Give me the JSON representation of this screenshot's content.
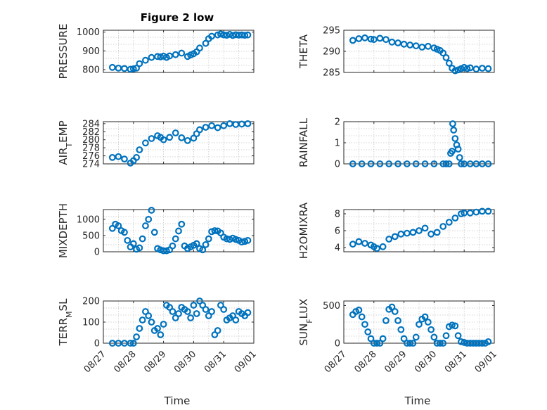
{
  "figure": {
    "title": "Figure 2 low"
  },
  "colors": {
    "marker": "#0072BD",
    "axis": "#262626",
    "grid": "#c8c8c8"
  },
  "chart_data": [
    {
      "type": "scatter",
      "ylabel": "PRESSURE",
      "title": "Figure 2 low",
      "ylim": [
        785,
        1010
      ],
      "yticks": [
        800,
        900,
        1000
      ],
      "grid": true,
      "series": [
        {
          "x": [
            0.3,
            0.5,
            0.7,
            0.9,
            1.0,
            1.1,
            1.2,
            1.4,
            1.6,
            1.8,
            1.9,
            2.0,
            2.1,
            2.2,
            2.4,
            2.6,
            2.8,
            2.9,
            3.0,
            3.1,
            3.2,
            3.4,
            3.5,
            3.6,
            3.8,
            3.9,
            4.0,
            4.1,
            4.2,
            4.3,
            4.4,
            4.5,
            4.6,
            4.7,
            4.8
          ],
          "y": [
            812,
            808,
            806,
            802,
            804,
            808,
            832,
            850,
            865,
            870,
            868,
            872,
            865,
            873,
            880,
            888,
            870,
            878,
            885,
            895,
            915,
            940,
            965,
            978,
            985,
            990,
            985,
            983,
            988,
            982,
            986,
            984,
            985,
            983,
            985
          ]
        }
      ]
    },
    {
      "type": "scatter",
      "ylabel": "THETA",
      "ylim": [
        285,
        295
      ],
      "yticks": [
        285,
        290,
        295
      ],
      "grid": true,
      "series": [
        {
          "x": [
            0.3,
            0.5,
            0.7,
            0.9,
            1.0,
            1.2,
            1.4,
            1.6,
            1.8,
            2.0,
            2.2,
            2.4,
            2.6,
            2.8,
            3.0,
            3.1,
            3.2,
            3.3,
            3.4,
            3.5,
            3.6,
            3.7,
            3.8,
            3.9,
            4.0,
            4.1,
            4.2,
            4.4,
            4.6,
            4.8
          ],
          "y": [
            292.6,
            293.0,
            293.2,
            292.9,
            292.8,
            293.1,
            292.8,
            292.2,
            292.0,
            291.7,
            291.5,
            291.3,
            291.0,
            291.2,
            290.8,
            290.5,
            290.2,
            289.6,
            288.5,
            287.2,
            286.0,
            285.4,
            285.6,
            285.9,
            286.2,
            285.9,
            286.1,
            285.8,
            286.0,
            285.9
          ]
        }
      ]
    },
    {
      "type": "scatter",
      "ylabel": "AIR_TEMP",
      "ylabel_parts": [
        "AIR",
        "T",
        "EMP"
      ],
      "ylim": [
        274,
        284.5
      ],
      "yticks": [
        274,
        276,
        278,
        280,
        282,
        284
      ],
      "grid": true,
      "series": [
        {
          "x": [
            0.3,
            0.5,
            0.7,
            0.9,
            1.0,
            1.1,
            1.2,
            1.4,
            1.6,
            1.8,
            1.9,
            2.0,
            2.2,
            2.4,
            2.6,
            2.8,
            3.0,
            3.1,
            3.2,
            3.4,
            3.6,
            3.8,
            4.0,
            4.2,
            4.4,
            4.6,
            4.8
          ],
          "y": [
            275.6,
            275.8,
            275.2,
            274.2,
            274.8,
            275.6,
            277.5,
            279.2,
            280.3,
            281.0,
            280.6,
            280.0,
            280.6,
            281.7,
            280.5,
            279.8,
            280.4,
            281.5,
            282.5,
            283.1,
            283.5,
            283.0,
            283.5,
            284.0,
            283.8,
            283.9,
            284.0
          ]
        }
      ]
    },
    {
      "type": "scatter",
      "ylabel": "RAINFALL",
      "ylim": [
        0,
        2
      ],
      "yticks": [
        0,
        1,
        2
      ],
      "grid": true,
      "series": [
        {
          "x": [
            0.3,
            0.6,
            0.9,
            1.2,
            1.5,
            1.8,
            2.1,
            2.4,
            2.7,
            3.0,
            3.3,
            3.4,
            3.5,
            3.55,
            3.6,
            3.62,
            3.65,
            3.7,
            3.75,
            3.8,
            3.85,
            3.9,
            4.0,
            4.2,
            4.4,
            4.6,
            4.8
          ],
          "y": [
            0,
            0,
            0,
            0,
            0,
            0,
            0,
            0,
            0,
            0,
            0,
            0,
            0,
            0.5,
            0.6,
            1.9,
            1.6,
            1.2,
            0.9,
            0.7,
            0.3,
            0,
            0,
            0,
            0,
            0,
            0
          ]
        }
      ]
    },
    {
      "type": "scatter",
      "ylabel": "MIXDEPTH",
      "ylim": [
        0,
        1300
      ],
      "yticks": [
        0,
        500,
        1000
      ],
      "grid": true,
      "series": [
        {
          "x": [
            0.3,
            0.4,
            0.5,
            0.6,
            0.7,
            0.8,
            0.9,
            1.0,
            1.1,
            1.2,
            1.3,
            1.4,
            1.5,
            1.6,
            1.7,
            1.8,
            1.9,
            2.0,
            2.1,
            2.2,
            2.3,
            2.4,
            2.5,
            2.6,
            2.7,
            2.8,
            2.9,
            3.0,
            3.1,
            3.2,
            3.3,
            3.4,
            3.5,
            3.6,
            3.7,
            3.8,
            3.9,
            4.0,
            4.1,
            4.2,
            4.3,
            4.4,
            4.5,
            4.6,
            4.7,
            4.8
          ],
          "y": [
            720,
            850,
            800,
            650,
            600,
            350,
            150,
            250,
            80,
            120,
            400,
            800,
            1000,
            1280,
            600,
            100,
            60,
            30,
            30,
            60,
            180,
            400,
            640,
            850,
            180,
            100,
            150,
            200,
            250,
            100,
            60,
            220,
            400,
            620,
            650,
            640,
            580,
            450,
            400,
            380,
            420,
            380,
            350,
            300,
            320,
            350
          ]
        }
      ]
    },
    {
      "type": "scatter",
      "ylabel": "H2OMIXRA",
      "ylim": [
        3.5,
        8.5
      ],
      "yticks": [
        4,
        6,
        8
      ],
      "grid": true,
      "series": [
        {
          "x": [
            0.3,
            0.5,
            0.7,
            0.9,
            1.0,
            1.1,
            1.3,
            1.5,
            1.7,
            1.9,
            2.1,
            2.3,
            2.5,
            2.7,
            2.9,
            3.1,
            3.3,
            3.5,
            3.7,
            3.9,
            4.0,
            4.2,
            4.4,
            4.6,
            4.8
          ],
          "y": [
            4.4,
            4.7,
            4.5,
            4.3,
            4.1,
            3.9,
            4.1,
            5.0,
            5.3,
            5.6,
            5.7,
            5.8,
            6.0,
            6.3,
            5.6,
            5.8,
            6.5,
            7.0,
            7.5,
            8.0,
            8.1,
            8.1,
            8.2,
            8.3,
            8.3
          ]
        }
      ]
    },
    {
      "type": "scatter",
      "ylabel": "TERR_MSL",
      "ylabel_parts": [
        "TERR",
        "M",
        "SL"
      ],
      "ylim": [
        0,
        200
      ],
      "yticks": [
        0,
        100,
        200
      ],
      "grid": true,
      "series": [
        {
          "x": [
            0.3,
            0.5,
            0.7,
            0.9,
            1.0,
            1.1,
            1.2,
            1.3,
            1.4,
            1.5,
            1.6,
            1.7,
            1.8,
            1.9,
            2.0,
            2.1,
            2.2,
            2.3,
            2.4,
            2.5,
            2.6,
            2.7,
            2.8,
            2.9,
            3.0,
            3.1,
            3.2,
            3.3,
            3.4,
            3.5,
            3.6,
            3.7,
            3.8,
            3.9,
            4.0,
            4.1,
            4.2,
            4.3,
            4.4,
            4.5,
            4.6,
            4.7,
            4.8
          ],
          "y": [
            0,
            0,
            0,
            0,
            0,
            30,
            70,
            110,
            150,
            130,
            100,
            60,
            70,
            40,
            90,
            180,
            170,
            150,
            120,
            140,
            170,
            160,
            150,
            120,
            180,
            140,
            200,
            180,
            160,
            130,
            150,
            40,
            60,
            180,
            160,
            110,
            120,
            130,
            110,
            150,
            140,
            130,
            145
          ]
        }
      ]
    },
    {
      "type": "scatter",
      "ylabel": "SUN_FLUX",
      "ylabel_parts": [
        "SUN",
        "F",
        "LUX"
      ],
      "ylim": [
        0,
        560
      ],
      "yticks": [
        0,
        500
      ],
      "grid": true,
      "series": [
        {
          "x": [
            0.3,
            0.4,
            0.5,
            0.6,
            0.7,
            0.8,
            0.9,
            1.0,
            1.1,
            1.2,
            1.3,
            1.4,
            1.5,
            1.6,
            1.7,
            1.8,
            1.9,
            2.0,
            2.1,
            2.2,
            2.3,
            2.4,
            2.5,
            2.6,
            2.7,
            2.8,
            2.9,
            3.0,
            3.1,
            3.2,
            3.3,
            3.4,
            3.5,
            3.6,
            3.7,
            3.8,
            3.9,
            4.0,
            4.1,
            4.2,
            4.3,
            4.4,
            4.5,
            4.6,
            4.7,
            4.8
          ],
          "y": [
            380,
            420,
            440,
            350,
            250,
            150,
            60,
            0,
            0,
            0,
            60,
            300,
            450,
            480,
            420,
            300,
            180,
            60,
            0,
            0,
            0,
            80,
            250,
            320,
            350,
            280,
            180,
            80,
            0,
            0,
            0,
            100,
            220,
            240,
            230,
            100,
            20,
            10,
            0,
            0,
            0,
            0,
            0,
            0,
            0,
            20
          ]
        }
      ]
    }
  ],
  "xaxis": {
    "label": "Time",
    "xlim": [
      0,
      5
    ],
    "ticks": [
      0,
      1,
      2,
      3,
      4,
      5
    ],
    "tick_labels": [
      "08/27",
      "08/28",
      "08/29",
      "08/30",
      "08/31",
      "09/01"
    ]
  }
}
